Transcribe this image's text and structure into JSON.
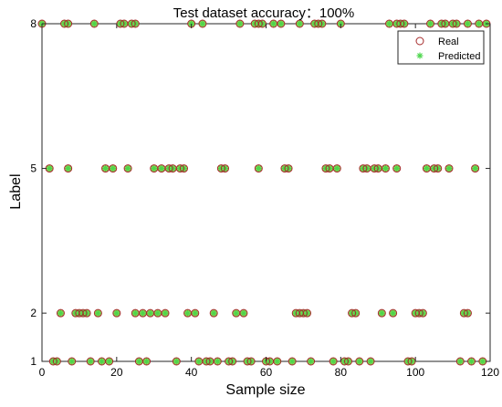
{
  "chart_data": {
    "type": "scatter",
    "title": "Test dataset accuracy：100%",
    "xlabel": "Sample size",
    "ylabel": "Label",
    "xlim": [
      0,
      120
    ],
    "ylim": [
      1,
      8
    ],
    "xticks": [
      0,
      20,
      40,
      60,
      80,
      100,
      120
    ],
    "yticks": [
      1,
      2,
      5,
      8
    ],
    "grid": false,
    "legend_position": "top-right",
    "series": [
      {
        "name": "Real",
        "marker": "circle-open",
        "color": "#a52a2a",
        "points": [
          [
            0,
            8
          ],
          [
            6,
            8
          ],
          [
            7,
            8
          ],
          [
            14,
            8
          ],
          [
            21,
            8
          ],
          [
            22,
            8
          ],
          [
            24,
            8
          ],
          [
            25,
            8
          ],
          [
            40,
            8
          ],
          [
            43,
            8
          ],
          [
            53,
            8
          ],
          [
            57,
            8
          ],
          [
            58,
            8
          ],
          [
            59,
            8
          ],
          [
            62,
            8
          ],
          [
            64,
            8
          ],
          [
            69,
            8
          ],
          [
            73,
            8
          ],
          [
            74,
            8
          ],
          [
            75,
            8
          ],
          [
            80,
            8
          ],
          [
            93,
            8
          ],
          [
            95,
            8
          ],
          [
            96,
            8
          ],
          [
            97,
            8
          ],
          [
            104,
            8
          ],
          [
            107,
            8
          ],
          [
            108,
            8
          ],
          [
            110,
            8
          ],
          [
            111,
            8
          ],
          [
            114,
            8
          ],
          [
            117,
            8
          ],
          [
            119,
            8
          ],
          [
            2,
            5
          ],
          [
            7,
            5
          ],
          [
            17,
            5
          ],
          [
            19,
            5
          ],
          [
            23,
            5
          ],
          [
            30,
            5
          ],
          [
            32,
            5
          ],
          [
            34,
            5
          ],
          [
            35,
            5
          ],
          [
            37,
            5
          ],
          [
            38,
            5
          ],
          [
            48,
            5
          ],
          [
            49,
            5
          ],
          [
            58,
            5
          ],
          [
            65,
            5
          ],
          [
            66,
            5
          ],
          [
            76,
            5
          ],
          [
            77,
            5
          ],
          [
            79,
            5
          ],
          [
            86,
            5
          ],
          [
            87,
            5
          ],
          [
            89,
            5
          ],
          [
            90,
            5
          ],
          [
            92,
            5
          ],
          [
            95,
            5
          ],
          [
            103,
            5
          ],
          [
            105,
            5
          ],
          [
            106,
            5
          ],
          [
            109,
            5
          ],
          [
            116,
            5
          ],
          [
            5,
            2
          ],
          [
            9,
            2
          ],
          [
            10,
            2
          ],
          [
            11,
            2
          ],
          [
            12,
            2
          ],
          [
            15,
            2
          ],
          [
            20,
            2
          ],
          [
            25,
            2
          ],
          [
            27,
            2
          ],
          [
            29,
            2
          ],
          [
            31,
            2
          ],
          [
            33,
            2
          ],
          [
            39,
            2
          ],
          [
            41,
            2
          ],
          [
            46,
            2
          ],
          [
            52,
            2
          ],
          [
            54,
            2
          ],
          [
            68,
            2
          ],
          [
            69,
            2
          ],
          [
            70,
            2
          ],
          [
            71,
            2
          ],
          [
            83,
            2
          ],
          [
            84,
            2
          ],
          [
            91,
            2
          ],
          [
            94,
            2
          ],
          [
            100,
            2
          ],
          [
            101,
            2
          ],
          [
            102,
            2
          ],
          [
            113,
            2
          ],
          [
            114,
            2
          ],
          [
            3,
            1
          ],
          [
            4,
            1
          ],
          [
            8,
            1
          ],
          [
            13,
            1
          ],
          [
            16,
            1
          ],
          [
            18,
            1
          ],
          [
            26,
            1
          ],
          [
            28,
            1
          ],
          [
            36,
            1
          ],
          [
            42,
            1
          ],
          [
            44,
            1
          ],
          [
            45,
            1
          ],
          [
            47,
            1
          ],
          [
            50,
            1
          ],
          [
            51,
            1
          ],
          [
            55,
            1
          ],
          [
            56,
            1
          ],
          [
            60,
            1
          ],
          [
            61,
            1
          ],
          [
            63,
            1
          ],
          [
            67,
            1
          ],
          [
            72,
            1
          ],
          [
            78,
            1
          ],
          [
            81,
            1
          ],
          [
            82,
            1
          ],
          [
            85,
            1
          ],
          [
            88,
            1
          ],
          [
            98,
            1
          ],
          [
            99,
            1
          ],
          [
            112,
            1
          ],
          [
            115,
            1
          ],
          [
            118,
            1
          ]
        ]
      },
      {
        "name": "Predicted",
        "marker": "asterisk",
        "color": "#4cd64c",
        "points": [
          [
            0,
            8
          ],
          [
            6,
            8
          ],
          [
            7,
            8
          ],
          [
            14,
            8
          ],
          [
            21,
            8
          ],
          [
            22,
            8
          ],
          [
            24,
            8
          ],
          [
            25,
            8
          ],
          [
            40,
            8
          ],
          [
            43,
            8
          ],
          [
            53,
            8
          ],
          [
            57,
            8
          ],
          [
            58,
            8
          ],
          [
            59,
            8
          ],
          [
            62,
            8
          ],
          [
            64,
            8
          ],
          [
            69,
            8
          ],
          [
            73,
            8
          ],
          [
            74,
            8
          ],
          [
            75,
            8
          ],
          [
            80,
            8
          ],
          [
            93,
            8
          ],
          [
            95,
            8
          ],
          [
            96,
            8
          ],
          [
            97,
            8
          ],
          [
            104,
            8
          ],
          [
            107,
            8
          ],
          [
            108,
            8
          ],
          [
            110,
            8
          ],
          [
            111,
            8
          ],
          [
            114,
            8
          ],
          [
            117,
            8
          ],
          [
            119,
            8
          ],
          [
            2,
            5
          ],
          [
            7,
            5
          ],
          [
            17,
            5
          ],
          [
            19,
            5
          ],
          [
            23,
            5
          ],
          [
            30,
            5
          ],
          [
            32,
            5
          ],
          [
            34,
            5
          ],
          [
            35,
            5
          ],
          [
            37,
            5
          ],
          [
            38,
            5
          ],
          [
            48,
            5
          ],
          [
            49,
            5
          ],
          [
            58,
            5
          ],
          [
            65,
            5
          ],
          [
            66,
            5
          ],
          [
            76,
            5
          ],
          [
            77,
            5
          ],
          [
            79,
            5
          ],
          [
            86,
            5
          ],
          [
            87,
            5
          ],
          [
            89,
            5
          ],
          [
            90,
            5
          ],
          [
            92,
            5
          ],
          [
            95,
            5
          ],
          [
            103,
            5
          ],
          [
            105,
            5
          ],
          [
            106,
            5
          ],
          [
            109,
            5
          ],
          [
            116,
            5
          ],
          [
            5,
            2
          ],
          [
            9,
            2
          ],
          [
            10,
            2
          ],
          [
            11,
            2
          ],
          [
            12,
            2
          ],
          [
            15,
            2
          ],
          [
            20,
            2
          ],
          [
            25,
            2
          ],
          [
            27,
            2
          ],
          [
            29,
            2
          ],
          [
            31,
            2
          ],
          [
            33,
            2
          ],
          [
            39,
            2
          ],
          [
            41,
            2
          ],
          [
            46,
            2
          ],
          [
            52,
            2
          ],
          [
            54,
            2
          ],
          [
            68,
            2
          ],
          [
            69,
            2
          ],
          [
            70,
            2
          ],
          [
            71,
            2
          ],
          [
            83,
            2
          ],
          [
            84,
            2
          ],
          [
            91,
            2
          ],
          [
            94,
            2
          ],
          [
            100,
            2
          ],
          [
            101,
            2
          ],
          [
            102,
            2
          ],
          [
            113,
            2
          ],
          [
            114,
            2
          ],
          [
            3,
            1
          ],
          [
            4,
            1
          ],
          [
            8,
            1
          ],
          [
            13,
            1
          ],
          [
            16,
            1
          ],
          [
            18,
            1
          ],
          [
            26,
            1
          ],
          [
            28,
            1
          ],
          [
            36,
            1
          ],
          [
            42,
            1
          ],
          [
            44,
            1
          ],
          [
            45,
            1
          ],
          [
            47,
            1
          ],
          [
            50,
            1
          ],
          [
            51,
            1
          ],
          [
            55,
            1
          ],
          [
            56,
            1
          ],
          [
            60,
            1
          ],
          [
            61,
            1
          ],
          [
            63,
            1
          ],
          [
            67,
            1
          ],
          [
            72,
            1
          ],
          [
            78,
            1
          ],
          [
            81,
            1
          ],
          [
            82,
            1
          ],
          [
            85,
            1
          ],
          [
            88,
            1
          ],
          [
            98,
            1
          ],
          [
            99,
            1
          ],
          [
            112,
            1
          ],
          [
            115,
            1
          ],
          [
            118,
            1
          ]
        ]
      }
    ]
  }
}
